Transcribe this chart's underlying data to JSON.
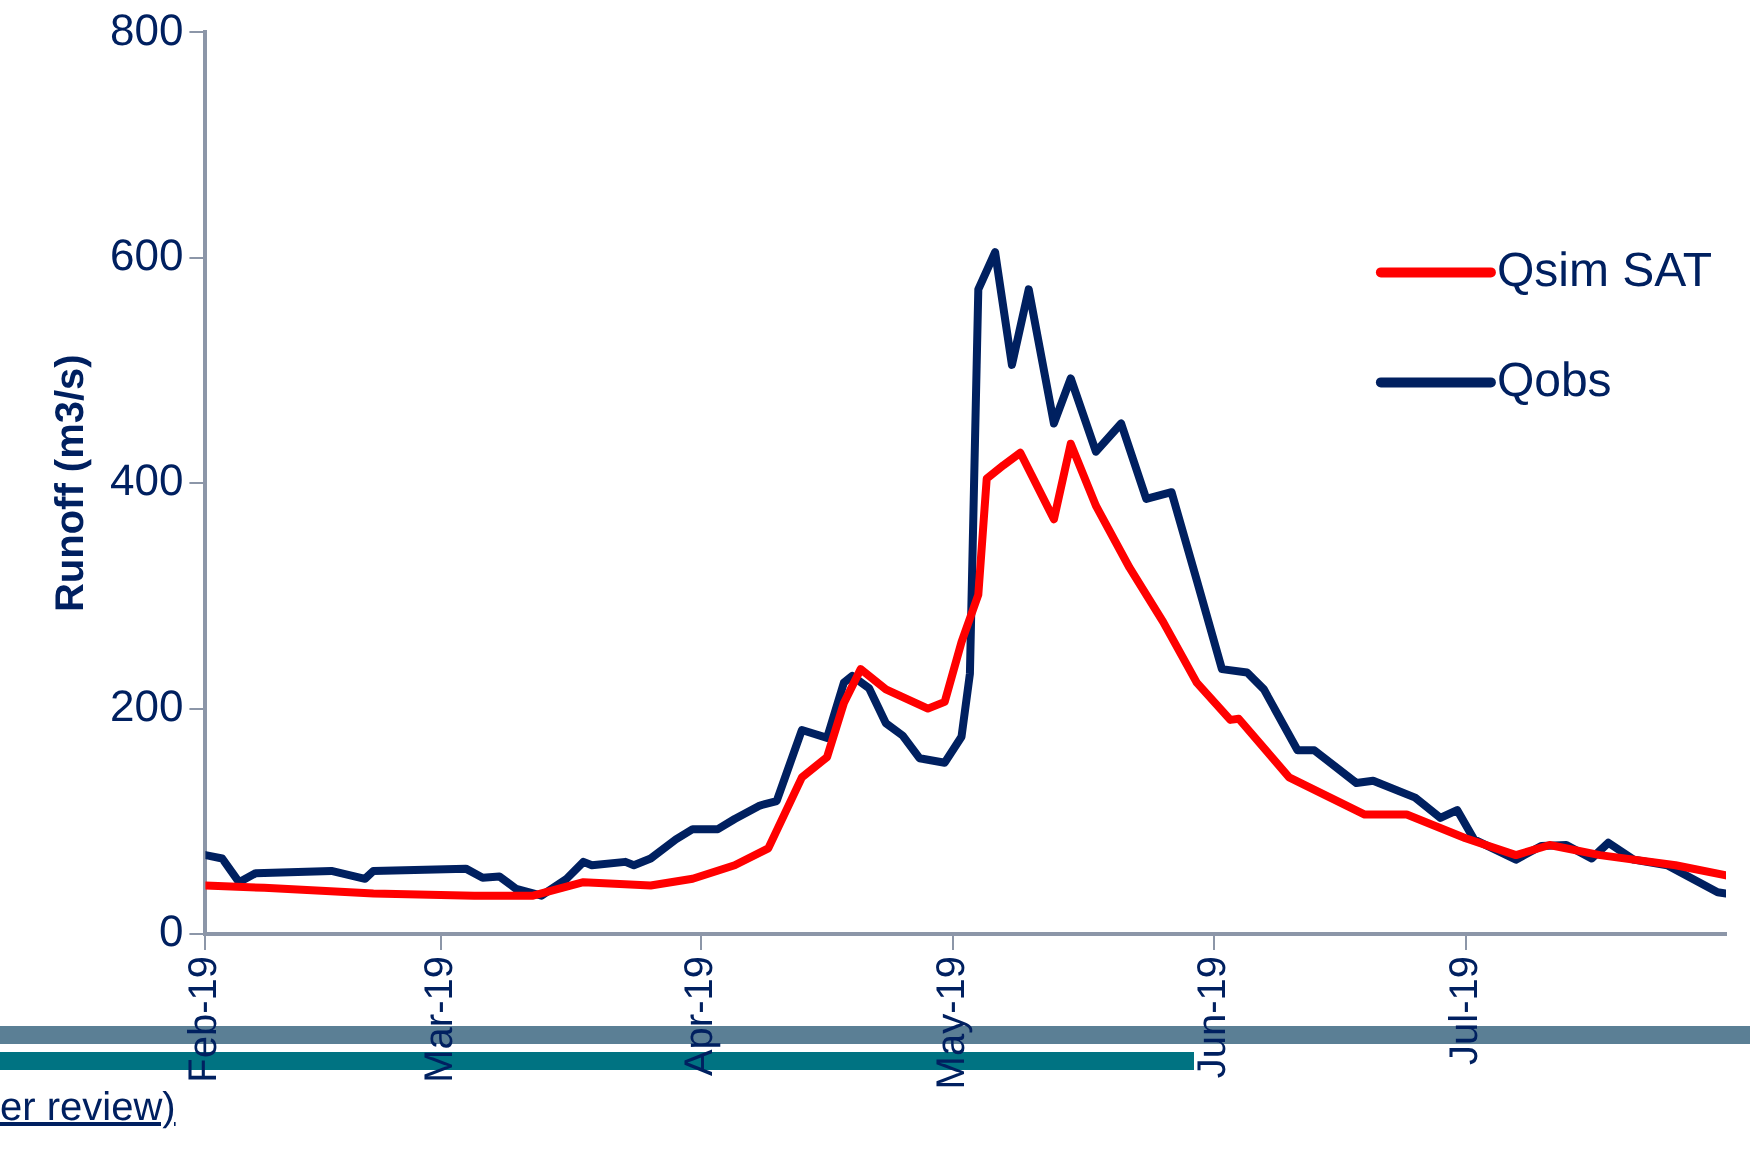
{
  "chart_data": {
    "type": "line",
    "ylabel": "Runoff (m3/s)",
    "xlim": [
      "2019-02-01",
      "2019-08-01"
    ],
    "xticks": [
      {
        "value": "2019-02-01",
        "label": "Feb-19"
      },
      {
        "value": "2019-03-01",
        "label": "Mar-19"
      },
      {
        "value": "2019-04-01",
        "label": "Apr-19"
      },
      {
        "value": "2019-05-01",
        "label": "May-19"
      },
      {
        "value": "2019-06-01",
        "label": "Jun-19"
      },
      {
        "value": "2019-07-01",
        "label": "Jul-19"
      }
    ],
    "ylim": [
      0,
      800
    ],
    "yticks": [
      0,
      200,
      400,
      600,
      800
    ],
    "grid": false,
    "legend": "right",
    "marker": "none",
    "line_style": "solid",
    "annotations": [
      "er review)"
    ],
    "series": [
      {
        "name": "Qsim SAT",
        "color": "#ff0000",
        "x": [
          "2019-02-01",
          "2019-02-08",
          "2019-02-21",
          "2019-03-05",
          "2019-03-12",
          "2019-03-18",
          "2019-03-26",
          "2019-03-31",
          "2019-04-05",
          "2019-04-09",
          "2019-04-13",
          "2019-04-16",
          "2019-04-18",
          "2019-04-20",
          "2019-04-23",
          "2019-04-28",
          "2019-04-30",
          "2019-05-02",
          "2019-05-04",
          "2019-05-05",
          "2019-05-07",
          "2019-05-09",
          "2019-05-13",
          "2019-05-15",
          "2019-05-18",
          "2019-05-22",
          "2019-05-26",
          "2019-05-30",
          "2019-06-03",
          "2019-06-04",
          "2019-06-10",
          "2019-06-19",
          "2019-06-24",
          "2019-07-01",
          "2019-07-07",
          "2019-07-11",
          "2019-07-17",
          "2019-07-26",
          "2019-08-01"
        ],
        "values": [
          43,
          41,
          36,
          34,
          34,
          46,
          43,
          49,
          61,
          76,
          139,
          157,
          205,
          235,
          217,
          200,
          206,
          259,
          301,
          404,
          416,
          427,
          368,
          435,
          380,
          325,
          277,
          223,
          190,
          191,
          139,
          106,
          106,
          85,
          70,
          79,
          70,
          61,
          52
        ]
      },
      {
        "name": "Qobs",
        "color": "#002060",
        "x": [
          "2019-02-01",
          "2019-02-03",
          "2019-02-05",
          "2019-02-07",
          "2019-02-16",
          "2019-02-20",
          "2019-02-21",
          "2019-03-04",
          "2019-03-06",
          "2019-03-08",
          "2019-03-10",
          "2019-03-13",
          "2019-03-16",
          "2019-03-18",
          "2019-03-19",
          "2019-03-23",
          "2019-03-24",
          "2019-03-26",
          "2019-03-29",
          "2019-03-31",
          "2019-04-03",
          "2019-04-05",
          "2019-04-08",
          "2019-04-10",
          "2019-04-11",
          "2019-04-13",
          "2019-04-16",
          "2019-04-18",
          "2019-04-19",
          "2019-04-21",
          "2019-04-23",
          "2019-04-25",
          "2019-04-27",
          "2019-04-30",
          "2019-05-02",
          "2019-05-03",
          "2019-05-04",
          "2019-05-06",
          "2019-05-08",
          "2019-05-10",
          "2019-05-13",
          "2019-05-15",
          "2019-05-18",
          "2019-05-21",
          "2019-05-24",
          "2019-05-27",
          "2019-05-30",
          "2019-06-02",
          "2019-06-05",
          "2019-06-07",
          "2019-06-11",
          "2019-06-13",
          "2019-06-18",
          "2019-06-20",
          "2019-06-25",
          "2019-06-28",
          "2019-06-30",
          "2019-07-02",
          "2019-07-07",
          "2019-07-10",
          "2019-07-13",
          "2019-07-16",
          "2019-07-18",
          "2019-07-21",
          "2019-07-25",
          "2019-07-28",
          "2019-07-31",
          "2019-08-01"
        ],
        "values": [
          70,
          67,
          46,
          54,
          56,
          49,
          56,
          58,
          50,
          51,
          40,
          34,
          49,
          64,
          61,
          64,
          61,
          67,
          84,
          93,
          93,
          102,
          114,
          118,
          139,
          181,
          174,
          223,
          229,
          218,
          187,
          176,
          156,
          152,
          175,
          231,
          572,
          605,
          505,
          572,
          453,
          493,
          428,
          453,
          386,
          392,
          314,
          235,
          232,
          217,
          163,
          163,
          134,
          136,
          121,
          103,
          110,
          84,
          66,
          78,
          79,
          67,
          81,
          66,
          61,
          49,
          37,
          36
        ]
      }
    ]
  }
}
